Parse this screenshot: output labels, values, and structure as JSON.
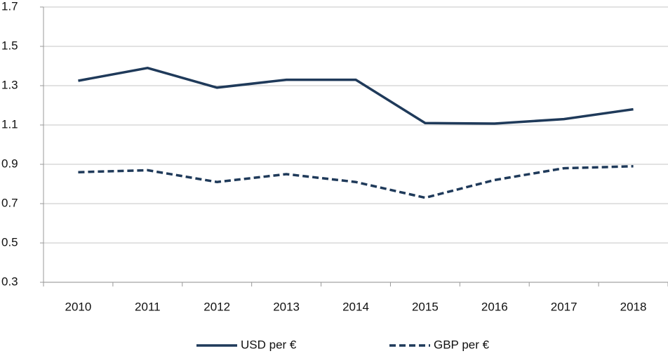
{
  "chart_data": {
    "type": "line",
    "categories": [
      "2010",
      "2011",
      "2012",
      "2013",
      "2014",
      "2015",
      "2016",
      "2017",
      "2018"
    ],
    "series": [
      {
        "name": "USD per €",
        "color": "#1f3a5a",
        "line_style": "solid",
        "values": [
          1.325,
          1.39,
          1.29,
          1.33,
          1.33,
          1.11,
          1.107,
          1.13,
          1.18
        ]
      },
      {
        "name": "GBP per €",
        "color": "#1f3a5a",
        "line_style": "dashed",
        "values": [
          0.86,
          0.87,
          0.81,
          0.85,
          0.81,
          0.73,
          0.82,
          0.88,
          0.89
        ]
      }
    ],
    "ylim": [
      0.3,
      1.7
    ],
    "yticks": [
      0.3,
      0.5,
      0.7,
      0.9,
      1.1,
      1.3,
      1.5,
      1.7
    ],
    "grid": true,
    "legend": "bottom"
  }
}
